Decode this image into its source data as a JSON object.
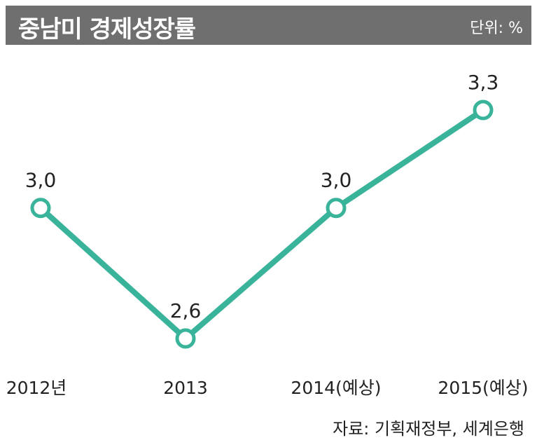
{
  "header": {
    "title": "중남미 경제성장률",
    "unit": "단위: %"
  },
  "source": "자료: 기획재정부, 세계은행",
  "colors": {
    "line": "#3ab39b",
    "header_bg": "#6f6f6f",
    "text": "#222222"
  },
  "chart_data": {
    "type": "line",
    "title": "중남미 경제성장률",
    "categories": [
      "2012년",
      "2013",
      "2014(예상)",
      "2015(예상)"
    ],
    "series": [
      {
        "values": [
          3.0,
          2.6,
          3.0,
          3.3
        ],
        "labels": [
          "3,0",
          "2,6",
          "3,0",
          "3,3"
        ]
      }
    ],
    "ylim": [
      2.6,
      3.3
    ],
    "grid": false,
    "legend": "none"
  }
}
